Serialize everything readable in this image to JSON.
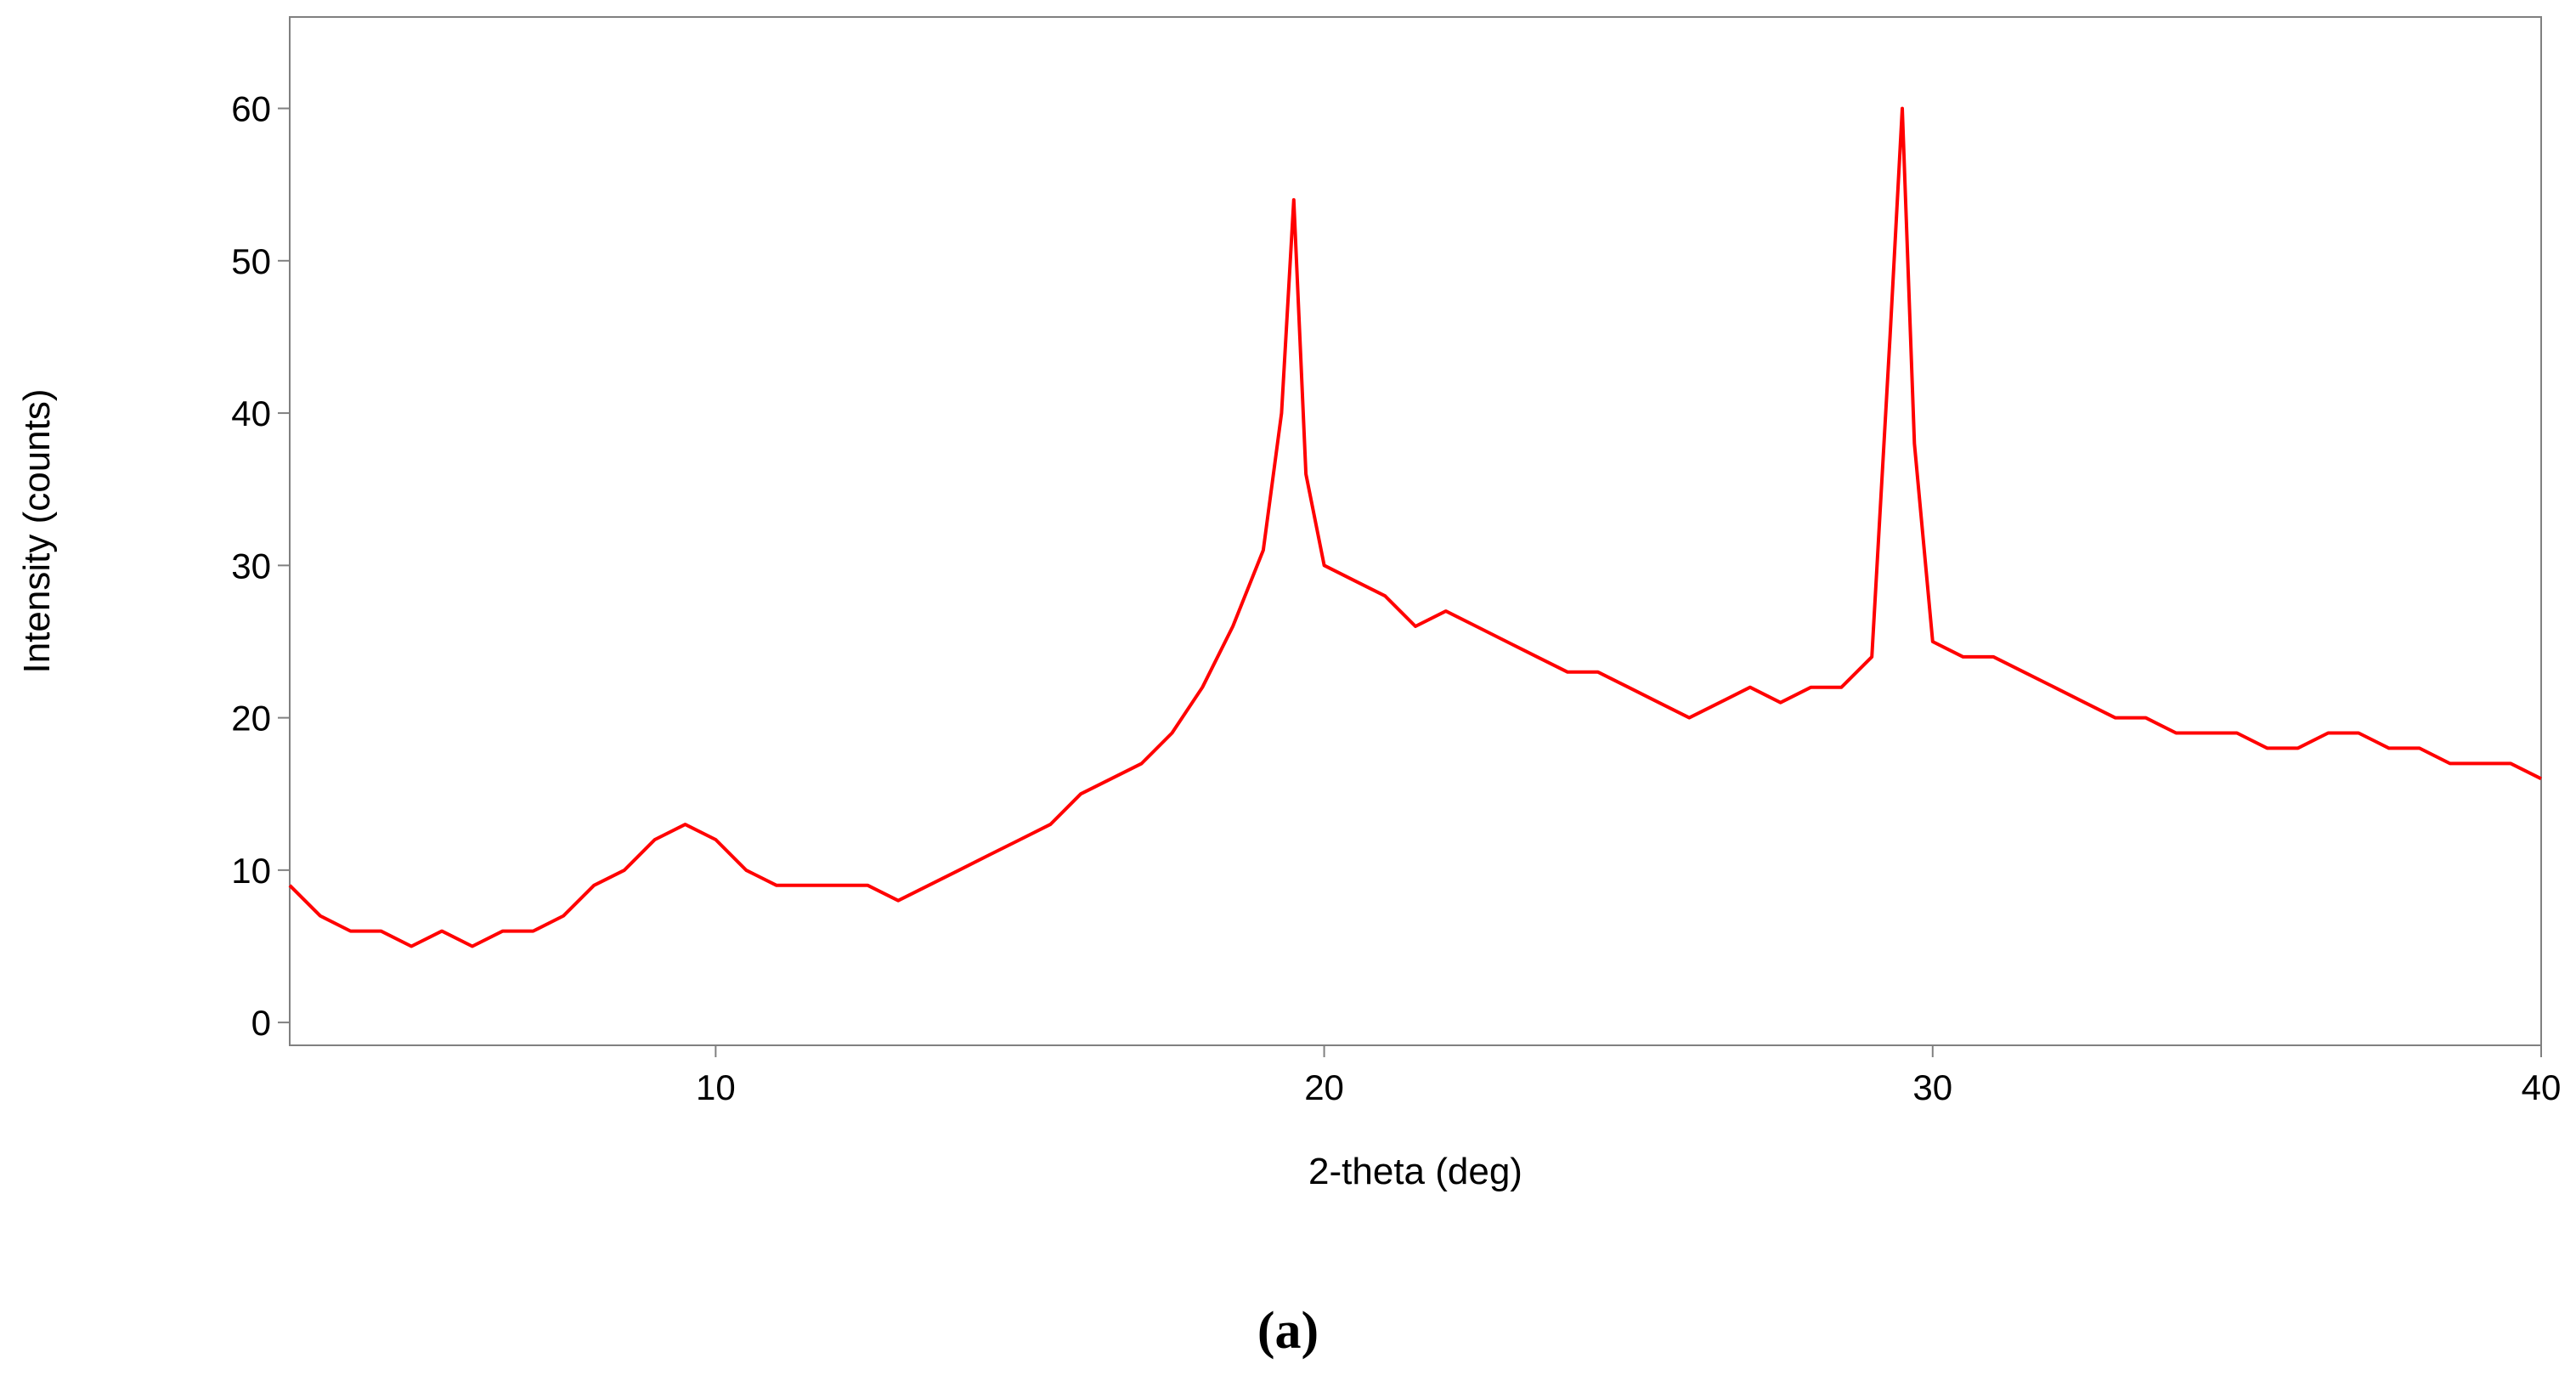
{
  "panel_label": "(a)",
  "chart_data": {
    "type": "line",
    "xlabel": "2-theta (deg)",
    "ylabel": "Intensity (counts)",
    "xlim": [
      3,
      40
    ],
    "ylim": [
      -1.5,
      66
    ],
    "xticks": [
      10,
      20,
      30,
      40
    ],
    "yticks": [
      0,
      10,
      20,
      30,
      40,
      50,
      60
    ],
    "grid": false,
    "legend": "none",
    "series": [
      {
        "color": "#ff0000",
        "x": [
          3.0,
          3.5,
          4.0,
          4.5,
          5.0,
          5.5,
          6.0,
          6.5,
          7.0,
          7.5,
          8.0,
          8.5,
          9.0,
          9.5,
          10.0,
          10.5,
          11.0,
          11.5,
          12.0,
          12.5,
          13.0,
          13.5,
          14.0,
          14.5,
          15.0,
          15.5,
          16.0,
          16.5,
          17.0,
          17.5,
          18.0,
          18.5,
          19.0,
          19.3,
          19.5,
          19.7,
          20.0,
          20.5,
          21.0,
          21.5,
          22.0,
          22.5,
          23.0,
          23.5,
          24.0,
          24.5,
          25.0,
          25.5,
          26.0,
          26.5,
          27.0,
          27.5,
          28.0,
          28.5,
          29.0,
          29.3,
          29.5,
          29.7,
          30.0,
          30.5,
          31.0,
          31.5,
          32.0,
          32.5,
          33.0,
          33.5,
          34.0,
          34.5,
          35.0,
          35.5,
          36.0,
          36.5,
          37.0,
          37.5,
          38.0,
          38.5,
          39.0,
          39.5,
          40.0
        ],
        "y": [
          9,
          7,
          6,
          6,
          5,
          6,
          5,
          6,
          6,
          7,
          9,
          10,
          12,
          13,
          12,
          10,
          9,
          9,
          9,
          9,
          8,
          9,
          10,
          11,
          12,
          13,
          15,
          16,
          17,
          19,
          22,
          26,
          31,
          40,
          54,
          36,
          30,
          29,
          28,
          26,
          27,
          26,
          25,
          24,
          23,
          23,
          22,
          21,
          20,
          21,
          22,
          21,
          22,
          22,
          24,
          45,
          60,
          38,
          25,
          24,
          24,
          23,
          22,
          21,
          20,
          20,
          19,
          19,
          19,
          18,
          18,
          19,
          19,
          18,
          18,
          17,
          17,
          17,
          16
        ]
      }
    ]
  }
}
